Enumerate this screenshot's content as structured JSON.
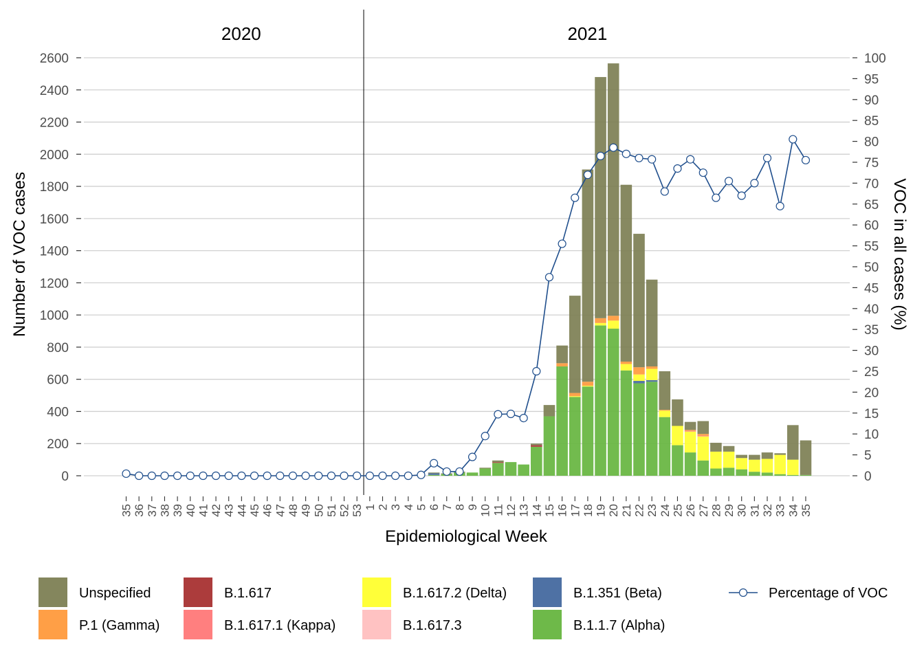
{
  "chart_data": {
    "type": "bar",
    "stacked": true,
    "xlabel": "Epidemiological Week",
    "ylabel": "Number of VOC cases",
    "y2label": "VOC in all cases (%)",
    "ylim": [
      0,
      2600
    ],
    "yticks": [
      0,
      200,
      400,
      600,
      800,
      1000,
      1200,
      1400,
      1600,
      1800,
      2000,
      2200,
      2400,
      2600
    ],
    "y2lim": [
      0,
      100
    ],
    "y2ticks": [
      0,
      5,
      10,
      15,
      20,
      25,
      30,
      35,
      40,
      45,
      50,
      55,
      60,
      65,
      70,
      75,
      80,
      85,
      90,
      95,
      100
    ],
    "grid": true,
    "legend_position": "bottom",
    "years": [
      {
        "label": "2020",
        "first_week_index": 0,
        "count": 19
      },
      {
        "label": "2021",
        "first_week_index": 19,
        "count": 35
      }
    ],
    "weeks": [
      "35",
      "36",
      "37",
      "38",
      "39",
      "40",
      "41",
      "42",
      "43",
      "44",
      "45",
      "46",
      "47",
      "48",
      "49",
      "50",
      "51",
      "52",
      "53",
      "1",
      "2",
      "3",
      "4",
      "5",
      "6",
      "7",
      "8",
      "9",
      "10",
      "11",
      "12",
      "13",
      "14",
      "15",
      "16",
      "17",
      "18",
      "19",
      "20",
      "21",
      "22",
      "23",
      "24",
      "25",
      "26",
      "27",
      "28",
      "29",
      "30",
      "31",
      "32",
      "33",
      "34",
      "35"
    ],
    "series": [
      {
        "name": "B.1.1.7 (Alpha)",
        "color": "#66b53f",
        "values": [
          0,
          0,
          0,
          0,
          0,
          0,
          0,
          0,
          0,
          0,
          0,
          0,
          0,
          0,
          0,
          0,
          0,
          0,
          0,
          0,
          0,
          0,
          0,
          0,
          5,
          10,
          20,
          20,
          45,
          80,
          85,
          70,
          180,
          370,
          680,
          490,
          555,
          935,
          915,
          655,
          575,
          585,
          365,
          190,
          145,
          95,
          45,
          50,
          40,
          25,
          20,
          10,
          5,
          5
        ]
      },
      {
        "name": "B.1.351 (Beta)",
        "color": "#44699f",
        "values": [
          0,
          0,
          0,
          0,
          0,
          0,
          0,
          0,
          0,
          0,
          0,
          0,
          0,
          0,
          0,
          0,
          0,
          0,
          0,
          0,
          0,
          0,
          0,
          0,
          10,
          0,
          0,
          0,
          0,
          0,
          0,
          0,
          0,
          0,
          0,
          0,
          0,
          0,
          0,
          0,
          15,
          10,
          0,
          0,
          0,
          0,
          0,
          0,
          0,
          0,
          0,
          0,
          0,
          0
        ]
      },
      {
        "name": "B.1.617.2 (Delta)",
        "color": "#ffff2e",
        "values": [
          0,
          0,
          0,
          0,
          0,
          0,
          0,
          0,
          0,
          0,
          0,
          0,
          0,
          0,
          0,
          0,
          0,
          0,
          0,
          0,
          0,
          0,
          0,
          0,
          0,
          0,
          0,
          0,
          0,
          0,
          0,
          0,
          0,
          0,
          0,
          5,
          5,
          15,
          50,
          40,
          40,
          70,
          40,
          120,
          130,
          150,
          105,
          100,
          70,
          75,
          85,
          120,
          95,
          0
        ]
      },
      {
        "name": "B.1.617.3",
        "color": "#ffbfbf",
        "values": [
          0,
          0,
          0,
          0,
          0,
          0,
          0,
          0,
          0,
          0,
          0,
          0,
          0,
          0,
          0,
          0,
          0,
          0,
          0,
          0,
          0,
          0,
          0,
          0,
          0,
          0,
          0,
          0,
          0,
          0,
          0,
          0,
          0,
          0,
          0,
          0,
          0,
          0,
          0,
          0,
          0,
          0,
          0,
          0,
          0,
          0,
          0,
          0,
          0,
          0,
          0,
          0,
          0,
          0
        ]
      },
      {
        "name": "B.1.617.1 (Kappa)",
        "color": "#ff7878",
        "values": [
          0,
          0,
          0,
          0,
          0,
          0,
          0,
          0,
          0,
          0,
          0,
          0,
          0,
          0,
          0,
          0,
          0,
          0,
          0,
          0,
          0,
          0,
          0,
          0,
          0,
          0,
          0,
          0,
          0,
          0,
          0,
          0,
          0,
          0,
          0,
          0,
          0,
          0,
          0,
          0,
          0,
          0,
          0,
          0,
          5,
          5,
          0,
          0,
          0,
          0,
          0,
          0,
          0,
          0
        ]
      },
      {
        "name": "B.1.617",
        "color": "#a83232",
        "values": [
          0,
          0,
          0,
          0,
          0,
          0,
          0,
          0,
          0,
          0,
          0,
          0,
          0,
          0,
          0,
          0,
          0,
          0,
          0,
          0,
          0,
          0,
          0,
          0,
          0,
          0,
          0,
          0,
          0,
          5,
          0,
          0,
          10,
          0,
          0,
          0,
          0,
          0,
          0,
          0,
          0,
          0,
          0,
          0,
          0,
          0,
          0,
          0,
          0,
          0,
          0,
          0,
          0,
          0
        ]
      },
      {
        "name": "P.1 (Gamma)",
        "color": "#ff9a3c",
        "values": [
          0,
          0,
          0,
          0,
          0,
          0,
          0,
          0,
          0,
          0,
          0,
          0,
          0,
          0,
          0,
          0,
          0,
          0,
          0,
          0,
          0,
          0,
          0,
          0,
          0,
          0,
          0,
          0,
          0,
          0,
          0,
          0,
          0,
          0,
          20,
          20,
          25,
          30,
          30,
          15,
          45,
          15,
          5,
          0,
          5,
          10,
          0,
          0,
          0,
          0,
          0,
          0,
          0,
          0
        ]
      },
      {
        "name": "Unspecified",
        "color": "#7d7f54",
        "values": [
          0,
          0,
          0,
          0,
          0,
          0,
          0,
          0,
          0,
          0,
          0,
          0,
          0,
          0,
          0,
          0,
          0,
          0,
          0,
          0,
          0,
          0,
          0,
          0,
          5,
          5,
          5,
          0,
          5,
          10,
          0,
          0,
          10,
          70,
          110,
          605,
          1320,
          1500,
          1570,
          1100,
          830,
          540,
          240,
          165,
          50,
          80,
          55,
          35,
          20,
          30,
          40,
          10,
          215,
          215
        ]
      }
    ],
    "line": {
      "name": "Percentage of VOC",
      "axis": "right",
      "color": "#1f4e8c",
      "values": [
        0.5,
        0,
        0,
        0,
        0,
        0,
        0,
        0,
        0,
        0,
        0,
        0,
        0,
        0,
        0,
        0,
        0,
        0,
        0,
        0,
        0,
        0,
        0,
        0.2,
        3,
        1,
        1,
        4.5,
        9.5,
        14.7,
        14.8,
        13.8,
        25,
        47.5,
        55.5,
        66.5,
        72,
        76.5,
        78.5,
        77,
        76,
        75.7,
        68,
        73.5,
        75.7,
        72.5,
        66.5,
        70.5,
        67,
        70,
        76,
        64.5,
        80.5,
        75.5
      ]
    },
    "legend_order": [
      "Unspecified",
      "B.1.617",
      "B.1.617.2 (Delta)",
      "B.1.351 (Beta)",
      "Percentage of VOC",
      "P.1 (Gamma)",
      "B.1.617.1 (Kappa)",
      "B.1.617.3",
      "B.1.1.7 (Alpha)"
    ]
  }
}
